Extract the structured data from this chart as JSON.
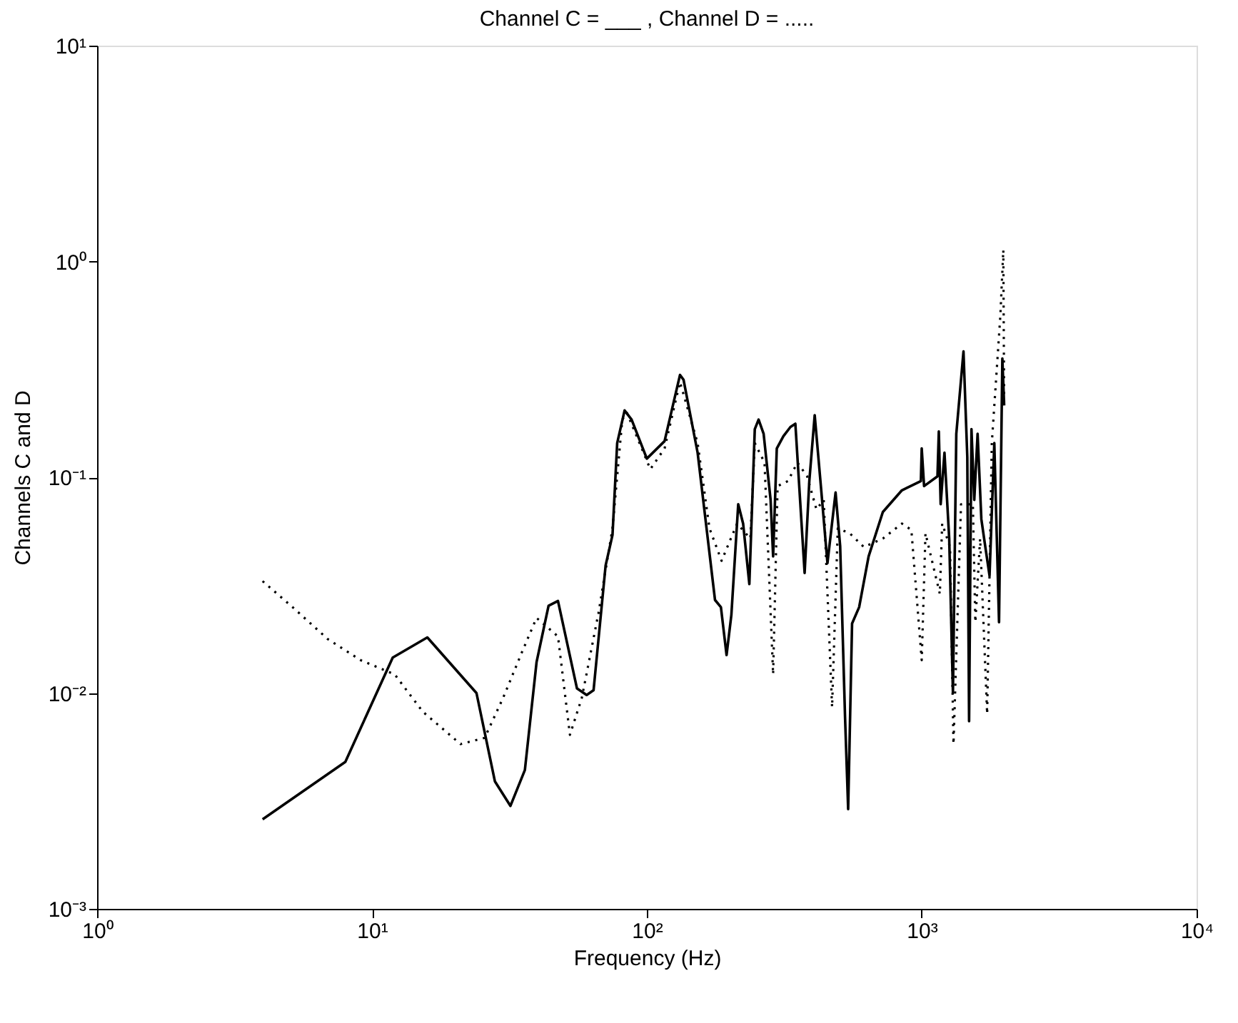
{
  "chart_data": {
    "type": "line",
    "title": "Channel C = ___ , Channel D = .....",
    "xlabel": "Frequency (Hz)",
    "ylabel": "Channels C and D",
    "log": "xy",
    "grid": false,
    "marker": "none",
    "xlim": [
      1,
      10000
    ],
    "ylim": [
      0.001,
      10
    ],
    "xticks": [
      {
        "value": 1,
        "label": "10⁰"
      },
      {
        "value": 10,
        "label": "10¹"
      },
      {
        "value": 100,
        "label": "10²"
      },
      {
        "value": 1000,
        "label": "10³"
      },
      {
        "value": 10000,
        "label": "10⁴"
      }
    ],
    "yticks": [
      {
        "value": 0.001,
        "label": "10⁻³"
      },
      {
        "value": 0.01,
        "label": "10⁻²"
      },
      {
        "value": 0.1,
        "label": "10⁻¹"
      },
      {
        "value": 1,
        "label": "10⁰"
      },
      {
        "value": 10,
        "label": "10¹"
      }
    ],
    "series": [
      {
        "color": "#000000",
        "line_style": "solid",
        "x": [
          4.0,
          8.0,
          11.9,
          15.9,
          24,
          28,
          31.9,
          36,
          39.7,
          43.9,
          47.5,
          55.7,
          60.4,
          64,
          70.8,
          75,
          78,
          83,
          88,
          100,
          116,
          132,
          136,
          153,
          177,
          186,
          195,
          203,
          215,
          224,
          236,
          247,
          255,
          266,
          282,
          288,
          297,
          314,
          333,
          347,
          361,
          375,
          390,
          408,
          431,
          454,
          486,
          505,
          526,
          540,
          558,
          592,
          641,
          722,
          847,
          993,
          1000,
          1020,
          1141,
          1154,
          1172,
          1210,
          1259,
          1299,
          1336,
          1419,
          1465,
          1487,
          1517,
          1553,
          1597,
          1648,
          1694,
          1765,
          1837,
          1911,
          1965,
          1995
        ],
        "values": [
          0.0026,
          0.0048,
          0.0146,
          0.0181,
          0.01,
          0.0039,
          0.003,
          0.0044,
          0.0139,
          0.0254,
          0.0267,
          0.0105,
          0.0098,
          0.0103,
          0.039,
          0.054,
          0.144,
          0.204,
          0.185,
          0.122,
          0.147,
          0.298,
          0.283,
          0.13,
          0.027,
          0.025,
          0.015,
          0.023,
          0.075,
          0.061,
          0.032,
          0.167,
          0.185,
          0.159,
          0.0785,
          0.043,
          0.136,
          0.155,
          0.171,
          0.177,
          0.0785,
          0.036,
          0.096,
          0.194,
          0.087,
          0.04,
          0.085,
          0.048,
          0.0078,
          0.0029,
          0.021,
          0.025,
          0.043,
          0.069,
          0.087,
          0.096,
          0.136,
          0.091,
          0.101,
          0.163,
          0.075,
          0.13,
          0.052,
          0.01,
          0.159,
          0.383,
          0.124,
          0.0074,
          0.167,
          0.0785,
          0.159,
          0.064,
          0.05,
          0.035,
          0.144,
          0.0213,
          0.355,
          0.215
        ]
      },
      {
        "color": "#000000",
        "line_style": "dotted",
        "x": [
          4.0,
          5.2,
          6.9,
          9.1,
          12.1,
          15.3,
          21,
          25.7,
          30,
          35.3,
          39.7,
          47.5,
          52.5,
          58,
          66.7,
          75,
          81.4,
          84.6,
          103,
          116,
          132,
          153,
          169,
          187,
          213,
          238,
          247,
          268,
          288,
          299,
          326,
          353,
          383,
          414,
          440,
          472,
          495,
          547,
          616,
          722,
          847,
          917,
          1000,
          1032,
          1164,
          1187,
          1268,
          1305,
          1390,
          1535,
          1567,
          1631,
          1730,
          1799,
          1932,
          1981,
          1995
        ],
        "values": [
          0.033,
          0.0247,
          0.0178,
          0.0142,
          0.0122,
          0.0082,
          0.0058,
          0.0062,
          0.0095,
          0.0157,
          0.0223,
          0.0183,
          0.0064,
          0.0095,
          0.0235,
          0.058,
          0.185,
          0.199,
          0.109,
          0.136,
          0.276,
          0.144,
          0.058,
          0.041,
          0.061,
          0.052,
          0.144,
          0.117,
          0.0122,
          0.091,
          0.096,
          0.117,
          0.101,
          0.071,
          0.0785,
          0.0086,
          0.058,
          0.055,
          0.0475,
          0.052,
          0.061,
          0.057,
          0.0142,
          0.055,
          0.0288,
          0.061,
          0.0475,
          0.0058,
          0.075,
          0.075,
          0.0213,
          0.052,
          0.008,
          0.144,
          0.558,
          1.13,
          0.215
        ]
      }
    ]
  }
}
